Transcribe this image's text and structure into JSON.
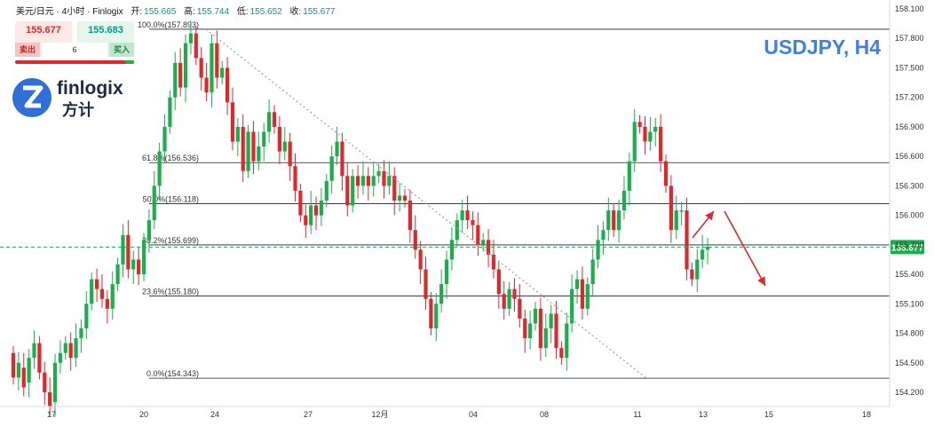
{
  "header": {
    "pair": "美元/日元 · 4小时 · Finlogix",
    "open_label": "开:",
    "open": "155.665",
    "high_label": "高:",
    "high": "155.744",
    "low_label": "低:",
    "low": "155.652",
    "close_label": "收:",
    "close": "155.677"
  },
  "trade_widget": {
    "sell_price": "155.677",
    "buy_price": "155.683",
    "sell_label": "卖出",
    "buy_label": "买入",
    "quantity": "6"
  },
  "brand": {
    "name": "finlogix",
    "name_cn": "方计"
  },
  "symbol_title": "USDJPY, H4",
  "colors": {
    "up": "#19b04b",
    "down": "#e0282c",
    "accent": "#3f7fe8"
  },
  "chart_data": {
    "type": "candlestick",
    "title": "USDJPY, H4",
    "ylim": [
      154.05,
      158.2
    ],
    "x_tick_labels": [
      "17",
      "20",
      "24",
      "27",
      "12月",
      "04",
      "08",
      "11",
      "13",
      "15",
      "18"
    ],
    "y_tick_labels": [
      "158.100",
      "157.800",
      "157.500",
      "157.200",
      "156.900",
      "156.600",
      "156.300",
      "156.000",
      "155.700",
      "155.400",
      "155.100",
      "154.800",
      "154.500",
      "154.200"
    ],
    "current_price": "155.677",
    "fibonacci_levels": [
      {
        "label": "100.0%(157.893)",
        "value": 157.893
      },
      {
        "label": "61.8%(156.536)",
        "value": 156.536
      },
      {
        "label": "50.0%(156.118)",
        "value": 156.118
      },
      {
        "label": "38.2%(155.699)",
        "value": 155.699
      },
      {
        "label": "23.6%(155.180)",
        "value": 155.18
      },
      {
        "label": "0.0%(154.343)",
        "value": 154.343
      }
    ],
    "candles": [
      [
        154.6,
        154.35
      ],
      [
        154.35,
        154.5
      ],
      [
        154.45,
        154.25
      ],
      [
        154.3,
        154.55
      ],
      [
        154.55,
        154.7
      ],
      [
        154.7,
        154.4
      ],
      [
        154.4,
        154.2
      ],
      [
        154.2,
        154.05
      ],
      [
        154.1,
        154.5
      ],
      [
        154.5,
        154.6
      ],
      [
        154.6,
        154.7
      ],
      [
        154.7,
        154.55
      ],
      [
        154.55,
        154.75
      ],
      [
        154.75,
        154.85
      ],
      [
        154.85,
        155.1
      ],
      [
        155.1,
        155.35
      ],
      [
        155.35,
        155.25
      ],
      [
        155.25,
        155.15
      ],
      [
        155.15,
        155.05
      ],
      [
        155.05,
        155.3
      ],
      [
        155.3,
        155.5
      ],
      [
        155.5,
        155.8
      ],
      [
        155.8,
        155.45
      ],
      [
        155.45,
        155.55
      ],
      [
        155.55,
        155.4
      ],
      [
        155.4,
        155.75
      ],
      [
        155.75,
        155.95
      ],
      [
        155.95,
        156.3
      ],
      [
        156.3,
        156.65
      ],
      [
        156.65,
        156.9
      ],
      [
        156.9,
        157.2
      ],
      [
        157.2,
        157.55
      ],
      [
        157.55,
        157.3
      ],
      [
        157.3,
        157.75
      ],
      [
        157.75,
        157.85
      ],
      [
        157.85,
        157.6
      ],
      [
        157.6,
        157.4
      ],
      [
        157.4,
        157.25
      ],
      [
        157.25,
        157.75
      ],
      [
        157.75,
        157.4
      ],
      [
        157.4,
        157.5
      ],
      [
        157.5,
        157.15
      ],
      [
        157.15,
        156.75
      ],
      [
        156.75,
        156.9
      ],
      [
        156.9,
        156.45
      ],
      [
        156.45,
        156.85
      ],
      [
        156.85,
        156.55
      ],
      [
        156.55,
        156.7
      ],
      [
        156.7,
        156.85
      ],
      [
        156.85,
        157.05
      ],
      [
        157.05,
        156.9
      ],
      [
        156.9,
        156.65
      ],
      [
        156.65,
        156.75
      ],
      [
        156.75,
        156.5
      ],
      [
        156.5,
        156.25
      ],
      [
        156.25,
        156.0
      ],
      [
        156.0,
        155.9
      ],
      [
        155.9,
        156.1
      ],
      [
        156.1,
        156.0
      ],
      [
        156.0,
        156.15
      ],
      [
        156.15,
        156.35
      ],
      [
        156.35,
        156.6
      ],
      [
        156.6,
        156.75
      ],
      [
        156.75,
        156.4
      ],
      [
        156.4,
        156.1
      ],
      [
        156.1,
        156.4
      ],
      [
        156.4,
        156.3
      ],
      [
        156.3,
        156.4
      ],
      [
        156.4,
        156.3
      ],
      [
        156.3,
        156.4
      ],
      [
        156.4,
        156.45
      ],
      [
        156.45,
        156.3
      ],
      [
        156.3,
        156.4
      ],
      [
        156.4,
        156.15
      ],
      [
        156.15,
        156.2
      ],
      [
        156.2,
        156.15
      ],
      [
        156.15,
        155.85
      ],
      [
        155.85,
        155.65
      ],
      [
        155.65,
        155.45
      ],
      [
        155.45,
        155.15
      ],
      [
        155.15,
        154.85
      ],
      [
        154.85,
        155.1
      ],
      [
        155.1,
        155.3
      ],
      [
        155.3,
        155.55
      ],
      [
        155.55,
        155.75
      ],
      [
        155.75,
        155.95
      ],
      [
        155.95,
        156.05
      ],
      [
        156.05,
        155.95
      ],
      [
        155.95,
        155.9
      ],
      [
        155.9,
        155.7
      ],
      [
        155.7,
        155.75
      ],
      [
        155.75,
        155.6
      ],
      [
        155.6,
        155.45
      ],
      [
        155.45,
        155.2
      ],
      [
        155.2,
        155.05
      ],
      [
        155.05,
        155.25
      ],
      [
        155.25,
        155.15
      ],
      [
        155.15,
        154.95
      ],
      [
        154.95,
        154.75
      ],
      [
        154.75,
        154.9
      ],
      [
        154.9,
        155.05
      ],
      [
        155.05,
        154.65
      ],
      [
        154.65,
        154.85
      ],
      [
        154.85,
        155.0
      ],
      [
        155.0,
        154.65
      ],
      [
        154.65,
        154.55
      ],
      [
        154.55,
        154.9
      ],
      [
        154.9,
        155.25
      ],
      [
        155.25,
        155.35
      ],
      [
        155.35,
        155.05
      ],
      [
        155.05,
        155.3
      ],
      [
        155.3,
        155.55
      ],
      [
        155.55,
        155.75
      ],
      [
        155.75,
        155.85
      ],
      [
        155.85,
        156.05
      ],
      [
        156.05,
        155.85
      ],
      [
        155.85,
        156.05
      ],
      [
        156.05,
        156.25
      ],
      [
        156.25,
        156.55
      ],
      [
        156.55,
        156.95
      ],
      [
        156.95,
        156.9
      ],
      [
        156.9,
        156.75
      ],
      [
        156.75,
        156.85
      ],
      [
        156.85,
        156.9
      ],
      [
        156.9,
        156.55
      ],
      [
        156.55,
        156.3
      ],
      [
        156.3,
        155.85
      ],
      [
        155.85,
        156.05
      ],
      [
        156.05,
        156.05
      ],
      [
        156.05,
        155.45
      ],
      [
        155.45,
        155.35
      ],
      [
        155.35,
        155.55
      ],
      [
        155.55,
        155.65
      ],
      [
        155.65,
        155.68
      ]
    ]
  }
}
